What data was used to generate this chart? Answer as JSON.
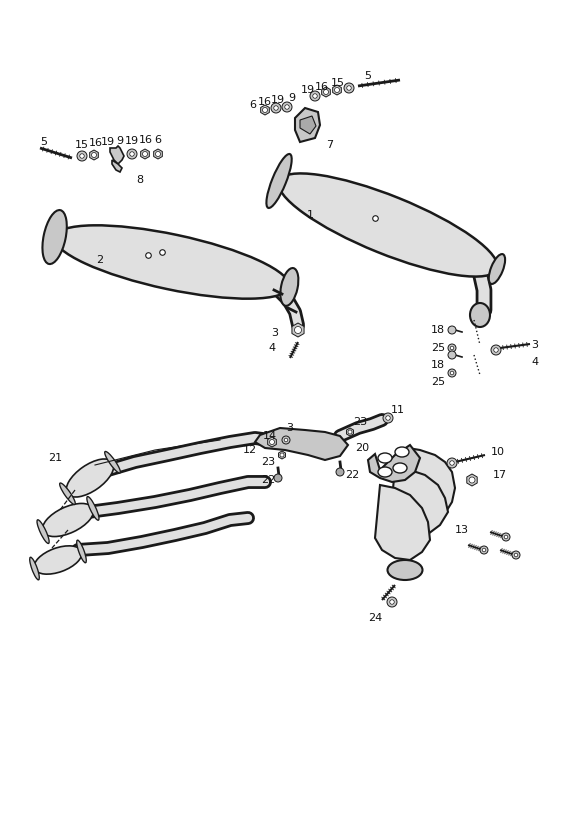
{
  "bg_color": "#ffffff",
  "figsize": [
    5.83,
    8.24
  ],
  "dpi": 100,
  "line_color": "#1a1a1a",
  "fill_light": "#e0e0e0",
  "fill_mid": "#c8c8c8",
  "fill_dark": "#aaaaaa"
}
